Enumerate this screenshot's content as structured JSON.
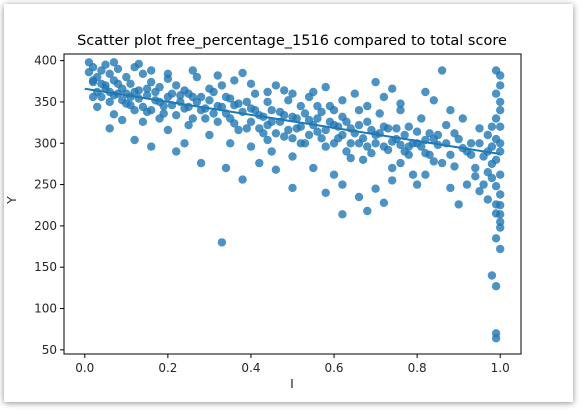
{
  "chart_data": {
    "type": "scatter",
    "title": "Scatter plot free_percentage_1516 compared to total score",
    "xlabel": "I",
    "ylabel": "Y",
    "xlim": [
      -0.05,
      1.05
    ],
    "ylim": [
      45,
      408
    ],
    "xticks": [
      0.0,
      0.2,
      0.4,
      0.6,
      0.8,
      1.0
    ],
    "xtick_labels": [
      "0.0",
      "0.2",
      "0.4",
      "0.6",
      "0.8",
      "1.0"
    ],
    "yticks": [
      50,
      100,
      150,
      200,
      250,
      300,
      350,
      400
    ],
    "ytick_labels": [
      "50",
      "100",
      "150",
      "200",
      "250",
      "300",
      "350",
      "400"
    ],
    "grid": false,
    "marker_color": "#1f77b4",
    "regression_line": {
      "x": [
        0.0,
        1.0
      ],
      "y": [
        366,
        287
      ]
    },
    "points": [
      [
        0.01,
        398
      ],
      [
        0.02,
        392
      ],
      [
        0.01,
        386
      ],
      [
        0.03,
        380
      ],
      [
        0.02,
        374
      ],
      [
        0.04,
        388
      ],
      [
        0.05,
        395
      ],
      [
        0.03,
        362
      ],
      [
        0.06,
        384
      ],
      [
        0.07,
        376
      ],
      [
        0.05,
        370
      ],
      [
        0.08,
        390
      ],
      [
        0.09,
        366
      ],
      [
        0.04,
        356
      ],
      [
        0.06,
        350
      ],
      [
        0.1,
        380
      ],
      [
        0.11,
        372
      ],
      [
        0.12,
        392
      ],
      [
        0.08,
        360
      ],
      [
        0.13,
        364
      ],
      [
        0.14,
        384
      ],
      [
        0.15,
        358
      ],
      [
        0.1,
        348
      ],
      [
        0.12,
        340
      ],
      [
        0.16,
        374
      ],
      [
        0.18,
        368
      ],
      [
        0.2,
        378
      ],
      [
        0.17,
        352
      ],
      [
        0.19,
        345
      ],
      [
        0.21,
        360
      ],
      [
        0.22,
        370
      ],
      [
        0.23,
        350
      ],
      [
        0.07,
        335
      ],
      [
        0.09,
        328
      ],
      [
        0.11,
        356
      ],
      [
        0.15,
        338
      ],
      [
        0.18,
        330
      ],
      [
        0.24,
        364
      ],
      [
        0.25,
        344
      ],
      [
        0.26,
        356
      ],
      [
        0.27,
        380
      ],
      [
        0.28,
        340
      ],
      [
        0.3,
        352
      ],
      [
        0.29,
        330
      ],
      [
        0.31,
        362
      ],
      [
        0.32,
        345
      ],
      [
        0.33,
        370
      ],
      [
        0.34,
        336
      ],
      [
        0.35,
        354
      ],
      [
        0.36,
        324
      ],
      [
        0.37,
        348
      ],
      [
        0.38,
        385
      ],
      [
        0.4,
        342
      ],
      [
        0.39,
        318
      ],
      [
        0.41,
        360
      ],
      [
        0.42,
        334
      ],
      [
        0.43,
        312
      ],
      [
        0.44,
        350
      ],
      [
        0.45,
        326
      ],
      [
        0.46,
        370
      ],
      [
        0.47,
        338
      ],
      [
        0.48,
        308
      ],
      [
        0.5,
        332
      ],
      [
        0.49,
        352
      ],
      [
        0.51,
        318
      ],
      [
        0.52,
        345
      ],
      [
        0.53,
        300
      ],
      [
        0.54,
        328
      ],
      [
        0.55,
        362
      ],
      [
        0.56,
        314
      ],
      [
        0.57,
        338
      ],
      [
        0.58,
        296
      ],
      [
        0.6,
        322
      ],
      [
        0.59,
        345
      ],
      [
        0.61,
        306
      ],
      [
        0.62,
        332
      ],
      [
        0.63,
        290
      ],
      [
        0.64,
        318
      ],
      [
        0.65,
        360
      ],
      [
        0.66,
        300
      ],
      [
        0.67,
        280
      ],
      [
        0.68,
        326
      ],
      [
        0.7,
        310
      ],
      [
        0.69,
        288
      ],
      [
        0.71,
        336
      ],
      [
        0.72,
        296
      ],
      [
        0.73,
        318
      ],
      [
        0.74,
        270
      ],
      [
        0.75,
        305
      ],
      [
        0.76,
        340
      ],
      [
        0.77,
        290
      ],
      [
        0.78,
        320
      ],
      [
        0.8,
        300
      ],
      [
        0.79,
        262
      ],
      [
        0.81,
        330
      ],
      [
        0.82,
        288
      ],
      [
        0.83,
        312
      ],
      [
        0.84,
        278
      ],
      [
        0.85,
        298
      ],
      [
        0.86,
        388
      ],
      [
        0.87,
        322
      ],
      [
        0.88,
        286
      ],
      [
        0.9,
        305
      ],
      [
        0.89,
        272
      ],
      [
        0.91,
        330
      ],
      [
        0.92,
        290
      ],
      [
        0.93,
        300
      ],
      [
        0.94,
        270
      ],
      [
        0.95,
        318
      ],
      [
        0.96,
        284
      ],
      [
        0.97,
        310
      ],
      [
        0.98,
        296
      ],
      [
        0.99,
        388
      ],
      [
        1.0,
        382
      ],
      [
        0.99,
        360
      ],
      [
        1.0,
        340
      ],
      [
        1.0,
        320
      ],
      [
        0.99,
        305
      ],
      [
        1.0,
        290
      ],
      [
        0.98,
        275
      ],
      [
        1.0,
        262
      ],
      [
        0.99,
        248
      ],
      [
        1.0,
        238
      ],
      [
        1.0,
        225
      ],
      [
        0.99,
        215
      ],
      [
        1.0,
        205
      ],
      [
        1.0,
        198
      ],
      [
        0.99,
        185
      ],
      [
        1.0,
        172
      ],
      [
        0.98,
        140
      ],
      [
        0.99,
        127
      ],
      [
        0.99,
        70
      ],
      [
        0.99,
        64
      ],
      [
        0.33,
        180
      ],
      [
        0.2,
        316
      ],
      [
        0.25,
        322
      ],
      [
        0.3,
        310
      ],
      [
        0.35,
        300
      ],
      [
        0.4,
        296
      ],
      [
        0.45,
        290
      ],
      [
        0.5,
        284
      ],
      [
        0.55,
        270
      ],
      [
        0.6,
        262
      ],
      [
        0.62,
        250
      ],
      [
        0.58,
        240
      ],
      [
        0.66,
        235
      ],
      [
        0.7,
        245
      ],
      [
        0.72,
        228
      ],
      [
        0.74,
        255
      ],
      [
        0.8,
        250
      ],
      [
        0.62,
        214
      ],
      [
        0.68,
        218
      ],
      [
        0.9,
        226
      ],
      [
        0.95,
        242
      ],
      [
        0.97,
        232
      ],
      [
        0.88,
        246
      ],
      [
        0.5,
        246
      ],
      [
        0.46,
        268
      ],
      [
        0.42,
        276
      ],
      [
        0.38,
        256
      ],
      [
        0.34,
        270
      ],
      [
        0.28,
        276
      ],
      [
        0.22,
        290
      ],
      [
        0.16,
        296
      ],
      [
        0.12,
        304
      ],
      [
        0.06,
        318
      ],
      [
        0.03,
        344
      ],
      [
        0.02,
        356
      ],
      [
        0.14,
        326
      ],
      [
        0.24,
        300
      ],
      [
        0.44,
        304
      ],
      [
        0.52,
        300
      ],
      [
        0.64,
        282
      ],
      [
        0.76,
        276
      ],
      [
        0.82,
        262
      ],
      [
        0.86,
        276
      ],
      [
        0.92,
        250
      ],
      [
        0.94,
        260
      ],
      [
        0.96,
        250
      ],
      [
        0.84,
        305
      ],
      [
        0.78,
        296
      ],
      [
        0.54,
        356
      ],
      [
        0.48,
        364
      ],
      [
        0.4,
        372
      ],
      [
        0.36,
        376
      ],
      [
        0.32,
        382
      ],
      [
        0.26,
        388
      ],
      [
        0.2,
        384
      ],
      [
        0.16,
        388
      ],
      [
        0.13,
        396
      ],
      [
        0.07,
        398
      ],
      [
        0.58,
        368
      ],
      [
        0.62,
        352
      ],
      [
        0.68,
        345
      ],
      [
        0.72,
        356
      ],
      [
        0.76,
        348
      ],
      [
        0.82,
        362
      ],
      [
        0.84,
        352
      ],
      [
        0.88,
        340
      ],
      [
        0.74,
        366
      ],
      [
        0.7,
        374
      ],
      [
        0.66,
        340
      ],
      [
        0.56,
        345
      ],
      [
        0.6,
        340
      ],
      [
        0.44,
        362
      ],
      [
        0.5,
        360
      ],
      [
        0.02,
        376
      ],
      [
        0.04,
        372
      ],
      [
        0.05,
        366
      ],
      [
        0.06,
        362
      ],
      [
        0.07,
        358
      ],
      [
        0.08,
        372
      ],
      [
        0.09,
        352
      ],
      [
        0.1,
        360
      ],
      [
        0.11,
        346
      ],
      [
        0.12,
        362
      ],
      [
        0.13,
        354
      ],
      [
        0.14,
        344
      ],
      [
        0.15,
        366
      ],
      [
        0.16,
        340
      ],
      [
        0.17,
        362
      ],
      [
        0.18,
        350
      ],
      [
        0.19,
        336
      ],
      [
        0.2,
        356
      ],
      [
        0.21,
        346
      ],
      [
        0.22,
        334
      ],
      [
        0.23,
        358
      ],
      [
        0.24,
        342
      ],
      [
        0.25,
        360
      ],
      [
        0.26,
        330
      ],
      [
        0.27,
        350
      ],
      [
        0.28,
        356
      ],
      [
        0.29,
        342
      ],
      [
        0.3,
        366
      ],
      [
        0.31,
        336
      ],
      [
        0.32,
        326
      ],
      [
        0.33,
        344
      ],
      [
        0.34,
        356
      ],
      [
        0.35,
        330
      ],
      [
        0.36,
        346
      ],
      [
        0.37,
        316
      ],
      [
        0.38,
        338
      ],
      [
        0.39,
        350
      ],
      [
        0.4,
        326
      ],
      [
        0.41,
        340
      ],
      [
        0.42,
        318
      ],
      [
        0.43,
        332
      ],
      [
        0.44,
        322
      ],
      [
        0.45,
        340
      ],
      [
        0.46,
        312
      ],
      [
        0.47,
        326
      ],
      [
        0.48,
        334
      ],
      [
        0.49,
        316
      ],
      [
        0.5,
        306
      ],
      [
        0.51,
        330
      ],
      [
        0.52,
        320
      ],
      [
        0.53,
        336
      ],
      [
        0.54,
        310
      ],
      [
        0.55,
        322
      ],
      [
        0.56,
        330
      ],
      [
        0.57,
        306
      ],
      [
        0.58,
        316
      ],
      [
        0.59,
        326
      ],
      [
        0.6,
        300
      ],
      [
        0.61,
        320
      ],
      [
        0.62,
        310
      ],
      [
        0.63,
        326
      ],
      [
        0.64,
        300
      ],
      [
        0.65,
        312
      ],
      [
        0.66,
        322
      ],
      [
        0.67,
        306
      ],
      [
        0.68,
        296
      ],
      [
        0.69,
        316
      ],
      [
        0.7,
        300
      ],
      [
        0.71,
        312
      ],
      [
        0.72,
        320
      ],
      [
        0.73,
        292
      ],
      [
        0.74,
        302
      ],
      [
        0.75,
        318
      ],
      [
        0.76,
        298
      ],
      [
        0.77,
        310
      ],
      [
        0.78,
        286
      ],
      [
        0.79,
        300
      ],
      [
        0.8,
        314
      ],
      [
        0.81,
        296
      ],
      [
        0.82,
        304
      ],
      [
        0.83,
        286
      ],
      [
        0.85,
        310
      ],
      [
        0.87,
        300
      ],
      [
        0.89,
        312
      ],
      [
        0.91,
        294
      ],
      [
        0.93,
        286
      ],
      [
        0.95,
        300
      ],
      [
        0.97,
        290
      ],
      [
        0.98,
        320
      ],
      [
        0.99,
        330
      ],
      [
        1.0,
        350
      ],
      [
        1.0,
        370
      ],
      [
        0.99,
        280
      ],
      [
        1.0,
        300
      ],
      [
        0.98,
        258
      ],
      [
        0.99,
        226
      ],
      [
        1.0,
        214
      ],
      [
        0.97,
        265
      ]
    ]
  }
}
